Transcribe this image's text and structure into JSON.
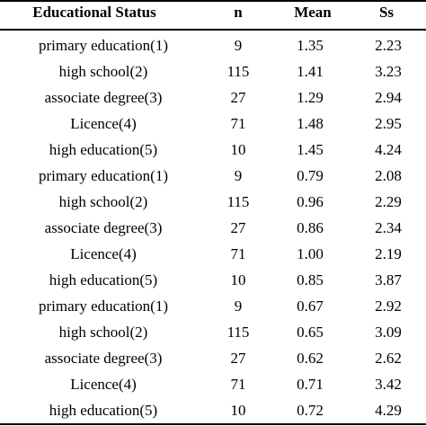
{
  "table": {
    "headers": {
      "status": "Educational Status",
      "n": "n",
      "mean": "Mean",
      "ss": "Ss"
    },
    "rows": [
      {
        "status": "primary education(1)",
        "n": "9",
        "mean": "1.35",
        "ss": "2.23"
      },
      {
        "status": "high school(2)",
        "n": "115",
        "mean": "1.41",
        "ss": "3.23"
      },
      {
        "status": "associate degree(3)",
        "n": "27",
        "mean": "1.29",
        "ss": "2.94"
      },
      {
        "status": "Licence(4)",
        "n": "71",
        "mean": "1.48",
        "ss": "2.95"
      },
      {
        "status": "high education(5)",
        "n": "10",
        "mean": "1.45",
        "ss": "4.24"
      },
      {
        "status": "primary education(1)",
        "n": "9",
        "mean": "0.79",
        "ss": "2.08"
      },
      {
        "status": "high school(2)",
        "n": "115",
        "mean": "0.96",
        "ss": "2.29"
      },
      {
        "status": "associate degree(3)",
        "n": "27",
        "mean": "0.86",
        "ss": "2.34"
      },
      {
        "status": "Licence(4)",
        "n": "71",
        "mean": "1.00",
        "ss": "2.19"
      },
      {
        "status": "high education(5)",
        "n": "10",
        "mean": "0.85",
        "ss": "3.87"
      },
      {
        "status": "primary education(1)",
        "n": "9",
        "mean": "0.67",
        "ss": "2.92"
      },
      {
        "status": "high school(2)",
        "n": "115",
        "mean": "0.65",
        "ss": "3.09"
      },
      {
        "status": "associate degree(3)",
        "n": "27",
        "mean": "0.62",
        "ss": "2.62"
      },
      {
        "status": "Licence(4)",
        "n": "71",
        "mean": "0.71",
        "ss": "3.42"
      },
      {
        "status": "high education(5)",
        "n": "10",
        "mean": "0.72",
        "ss": "4.29"
      }
    ]
  }
}
